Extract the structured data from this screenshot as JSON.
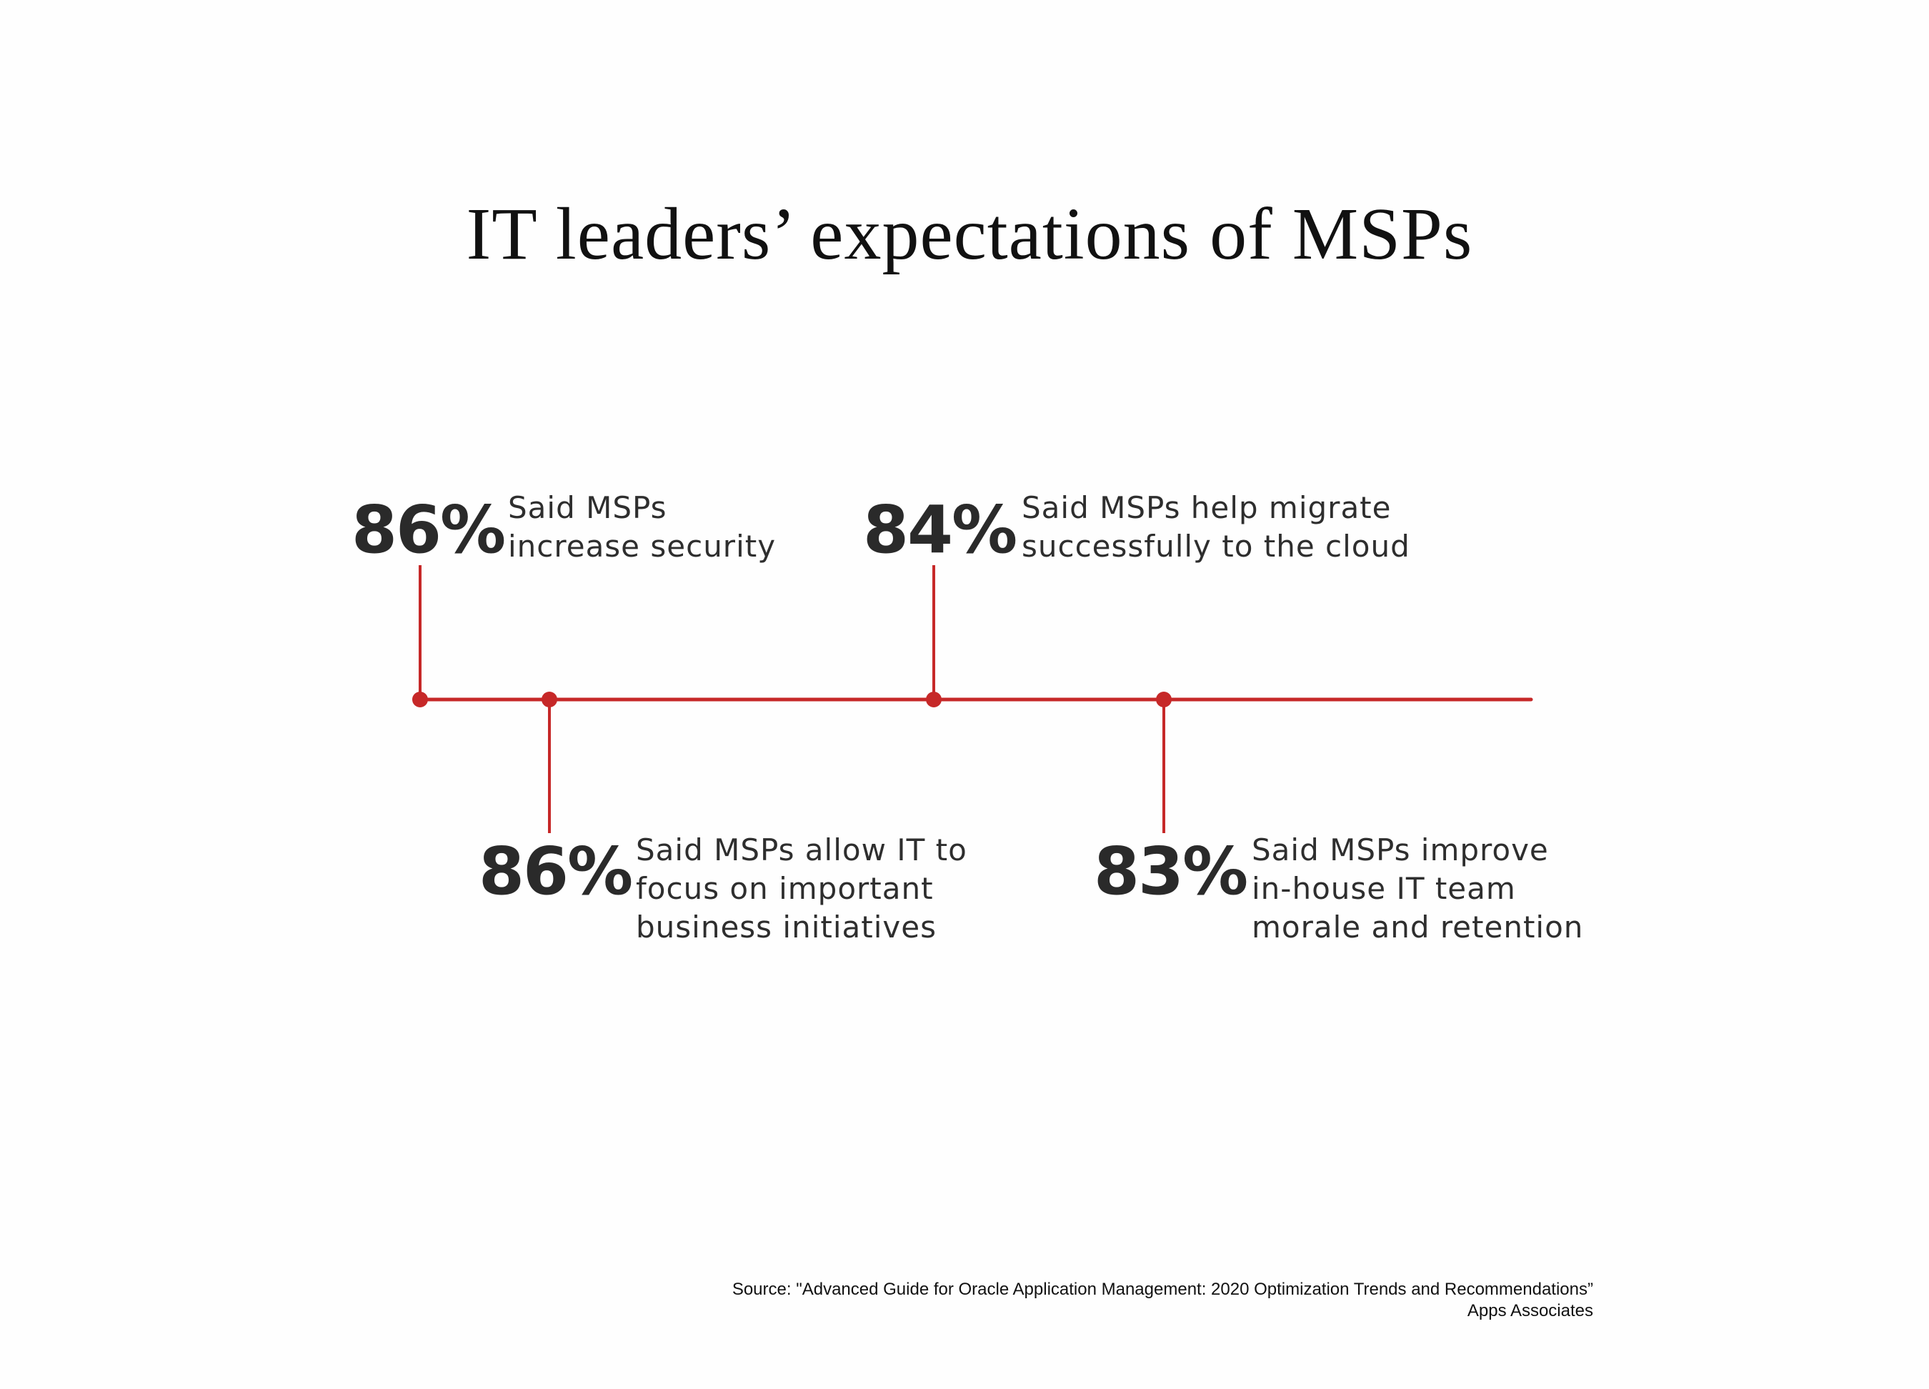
{
  "title": "IT leaders’ expectations of MSPs",
  "accent_color": "#c62828",
  "items": [
    {
      "value": "86%",
      "text": "Said MSPs\nincrease security",
      "position": "above"
    },
    {
      "value": "86%",
      "text": "Said MSPs allow IT to\nfocus on important\nbusiness initiatives",
      "position": "below"
    },
    {
      "value": "84%",
      "text": "Said MSPs help migrate\nsuccessfully to the cloud",
      "position": "above"
    },
    {
      "value": "83%",
      "text": "Said MSPs improve\nin-house IT team\nmorale and retention",
      "position": "below"
    }
  ],
  "source": {
    "line1": "Source: \"Advanced Guide for Oracle Application Management: 2020 Optimization Trends and Recommendations”",
    "line2": "Apps Associates"
  }
}
